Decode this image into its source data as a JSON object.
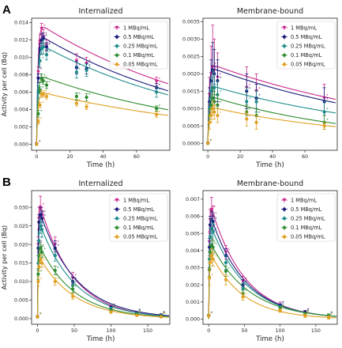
{
  "panel_labels": [
    "A",
    "B"
  ],
  "series_colors": [
    "#c8268a",
    "#1a1a7a",
    "#1e8b8b",
    "#2e8b2e",
    "#e0a020"
  ],
  "chart_data": [
    {
      "type": "scatter",
      "panel": "A",
      "title": "Internalized",
      "xlabel": "Time (h)",
      "ylabel": "Activity per cell (Bq)",
      "xlim": [
        -3,
        80
      ],
      "ylim": [
        -0.0007,
        0.0145
      ],
      "xticks": [
        0,
        20,
        40,
        60
      ],
      "yticks": [
        0,
        0.002,
        0.004,
        0.006,
        0.008,
        0.01,
        0.012,
        0.014
      ],
      "ytick_labels": [
        "0.000",
        "0.002",
        "0.004",
        "0.006",
        "0.008",
        "0.010",
        "0.012",
        "0.014"
      ],
      "legend_position": "upper right",
      "fit": {
        "model": "biexponential",
        "params": [
          [
            0.0099,
            0.0038,
            0.0124
          ],
          [
            0.0093,
            0.0038,
            0.0127
          ],
          [
            0.0084,
            0.004,
            0.0131
          ],
          [
            0.0066,
            0.0042,
            0.0087
          ],
          [
            0.005,
            0.0044,
            0.0071
          ]
        ]
      },
      "series": [
        {
          "name": "1 MBq/mL",
          "x": [
            0,
            1,
            2,
            3,
            4,
            6,
            24,
            30,
            72
          ],
          "y": [
            0.0,
            0.0083,
            0.0118,
            0.0133,
            0.0124,
            0.0114,
            0.0096,
            0.0093,
            0.0072
          ],
          "err": [
            0,
            0.0006,
            0.0008,
            0.0006,
            0.0008,
            0.0006,
            0.0008,
            0.0007,
            0.0005
          ]
        },
        {
          "name": "0.5 MBq/mL",
          "x": [
            0,
            1,
            2,
            3,
            4,
            6,
            24,
            30,
            72
          ],
          "y": [
            0.0,
            0.0076,
            0.011,
            0.012,
            0.0122,
            0.0112,
            0.0088,
            0.0087,
            0.0065
          ],
          "err": [
            0,
            0.0005,
            0.0006,
            0.0007,
            0.0006,
            0.0005,
            0.0007,
            0.0006,
            0.0005
          ]
        },
        {
          "name": "0.25 MBq/mL",
          "x": [
            0,
            1,
            2,
            3,
            4,
            6,
            24,
            30,
            72
          ],
          "y": [
            0.0,
            0.006,
            0.0096,
            0.011,
            0.0112,
            0.0103,
            0.0083,
            0.0085,
            0.006
          ],
          "err": [
            0,
            0.0007,
            0.0008,
            0.0007,
            0.0008,
            0.0006,
            0.0007,
            0.0007,
            0.0006
          ]
        },
        {
          "name": "0.1 MBq/mL",
          "x": [
            0,
            1,
            2,
            3,
            4,
            6,
            24,
            30,
            72
          ],
          "y": [
            0.0,
            0.0035,
            0.0062,
            0.0076,
            0.0073,
            0.0068,
            0.0055,
            0.0054,
            0.0041
          ],
          "err": [
            0,
            0.0004,
            0.0004,
            0.0005,
            0.0004,
            0.0004,
            0.0004,
            0.0004,
            0.0003
          ]
        },
        {
          "name": "0.05 MBq/mL",
          "x": [
            0,
            1,
            2,
            3,
            4,
            6,
            24,
            30,
            72
          ],
          "y": [
            0.0,
            0.0026,
            0.0045,
            0.0058,
            0.0057,
            0.0055,
            0.0047,
            0.0043,
            0.0034
          ],
          "err": [
            0,
            0.0003,
            0.0003,
            0.0004,
            0.0003,
            0.0003,
            0.0003,
            0.0003,
            0.0003
          ]
        }
      ]
    },
    {
      "type": "scatter",
      "panel": "A",
      "title": "Membrane-bound",
      "xlabel": "Time (h)",
      "ylabel": "",
      "xlim": [
        -3,
        80
      ],
      "ylim": [
        -0.0002,
        0.0036
      ],
      "xticks": [
        0,
        20,
        40,
        60
      ],
      "yticks": [
        0,
        0.0005,
        0.001,
        0.0015,
        0.002,
        0.0025,
        0.003,
        0.0035
      ],
      "ytick_labels": [
        "0.0000",
        "0.0005",
        "0.0010",
        "0.0015",
        "0.0020",
        "0.0025",
        "0.0030",
        "0.0035"
      ],
      "legend_position": "upper right",
      "fit": {
        "model": "biexponential",
        "params": [
          [
            0.00189,
            0.0046,
            0.015
          ],
          [
            0.00166,
            0.0048,
            0.015
          ],
          [
            0.00144,
            0.005,
            0.014
          ],
          [
            0.00112,
            0.0056,
            0.012
          ],
          [
            0.00088,
            0.006,
            0.011
          ]
        ]
      },
      "series": [
        {
          "name": "1 MBq/mL",
          "x": [
            0,
            1,
            2,
            3,
            4,
            6,
            24,
            30,
            72
          ],
          "y": [
            0.0,
            0.0014,
            0.002,
            0.0022,
            0.0021,
            0.0019,
            0.0016,
            0.0015,
            0.0013
          ],
          "err": [
            0,
            0.0005,
            0.0008,
            0.0012,
            0.0009,
            0.0007,
            0.0006,
            0.0005,
            0.0004
          ]
        },
        {
          "name": "0.5 MBq/mL",
          "x": [
            0,
            1,
            2,
            3,
            4,
            6,
            24,
            30,
            72
          ],
          "y": [
            0.0,
            0.0012,
            0.0018,
            0.0021,
            0.002,
            0.0018,
            0.0015,
            0.0013,
            0.0012
          ],
          "err": [
            0,
            0.0004,
            0.0006,
            0.0008,
            0.0007,
            0.0006,
            0.0005,
            0.0004,
            0.0004
          ]
        },
        {
          "name": "0.25 MBq/mL",
          "x": [
            0,
            1,
            2,
            3,
            4,
            6,
            24,
            30,
            72
          ],
          "y": [
            0.0,
            0.001,
            0.0015,
            0.0016,
            0.0016,
            0.0014,
            0.0012,
            0.0012,
            0.0009
          ],
          "err": [
            0,
            0.0003,
            0.0004,
            0.0005,
            0.0004,
            0.0004,
            0.0004,
            0.0003,
            0.0003
          ]
        },
        {
          "name": "0.1 MBq/mL",
          "x": [
            0,
            1,
            2,
            3,
            4,
            6,
            24,
            30,
            72
          ],
          "y": [
            0.0,
            0.0008,
            0.0011,
            0.0013,
            0.0012,
            0.0011,
            0.0009,
            0.0008,
            0.0006
          ],
          "err": [
            0,
            0.0002,
            0.0003,
            0.0003,
            0.0003,
            0.0003,
            0.0002,
            0.0002,
            0.0002
          ]
        },
        {
          "name": "0.05 MBq/mL",
          "x": [
            0,
            1,
            2,
            3,
            4,
            6,
            24,
            30,
            72
          ],
          "y": [
            0.0,
            0.0006,
            0.0008,
            0.001,
            0.0009,
            0.0008,
            0.0007,
            0.0006,
            0.0005
          ],
          "err": [
            0,
            0.0002,
            0.0002,
            0.0002,
            0.0002,
            0.0002,
            0.0002,
            0.0002,
            0.0001
          ]
        }
      ]
    },
    {
      "type": "scatter",
      "panel": "B",
      "title": "Internalized",
      "xlabel": "Time (h)",
      "ylabel": "Activity per cell (Bq)",
      "xlim": [
        -8,
        180
      ],
      "ylim": [
        -0.0015,
        0.0345
      ],
      "xticks": [
        0,
        50,
        100,
        150
      ],
      "yticks": [
        0,
        0.005,
        0.01,
        0.015,
        0.02,
        0.025,
        0.03
      ],
      "ytick_labels": [
        "0.000",
        "0.005",
        "0.010",
        "0.015",
        "0.020",
        "0.025",
        "0.030"
      ],
      "legend_position": "upper right",
      "fit": {
        "model": "peaked-decay",
        "params": [
          [
            0.0285,
            3.5
          ],
          [
            0.0275,
            3.5
          ],
          [
            0.027,
            3.5
          ],
          [
            0.021,
            3.3
          ],
          [
            0.018,
            3.3
          ]
        ]
      },
      "series": [
        {
          "name": "1 MBq/mL",
          "x": [
            0,
            1,
            2,
            4,
            6,
            24,
            48,
            100,
            135,
            168
          ],
          "y": [
            0.0005,
            0.02,
            0.027,
            0.03,
            0.028,
            0.02,
            0.011,
            0.003,
            0.0015,
            0.0008
          ],
          "err": [
            0,
            0.002,
            0.003,
            0.003,
            0.002,
            0.002,
            0.0015,
            0.0005,
            0.0004,
            0.0003
          ]
        },
        {
          "name": "0.5 MBq/mL",
          "x": [
            0,
            1,
            2,
            4,
            6,
            24,
            48,
            100,
            135,
            168
          ],
          "y": [
            0.0005,
            0.019,
            0.026,
            0.028,
            0.027,
            0.019,
            0.01,
            0.003,
            0.0016,
            0.001
          ],
          "err": [
            0,
            0.002,
            0.002,
            0.002,
            0.002,
            0.002,
            0.0012,
            0.0005,
            0.0003,
            0.0003
          ]
        },
        {
          "name": "0.25 MBq/mL",
          "x": [
            0,
            1,
            2,
            4,
            6,
            24,
            48,
            100,
            135,
            168
          ],
          "y": [
            0.0005,
            0.015,
            0.021,
            0.025,
            0.024,
            0.017,
            0.009,
            0.0027,
            0.0014,
            0.0008
          ],
          "err": [
            0,
            0.002,
            0.002,
            0.002,
            0.002,
            0.0015,
            0.001,
            0.0004,
            0.0003,
            0.0002
          ]
        },
        {
          "name": "0.1 MBq/mL",
          "x": [
            0,
            1,
            2,
            4,
            6,
            24,
            48,
            100,
            135,
            168
          ],
          "y": [
            0.0005,
            0.012,
            0.017,
            0.019,
            0.018,
            0.013,
            0.008,
            0.0022,
            0.0012,
            0.0006
          ],
          "err": [
            0,
            0.0015,
            0.0015,
            0.0015,
            0.0015,
            0.0012,
            0.001,
            0.0003,
            0.0002,
            0.0002
          ]
        },
        {
          "name": "0.05 MBq/mL",
          "x": [
            0,
            1,
            2,
            4,
            6,
            24,
            48,
            100,
            135,
            168
          ],
          "y": [
            0.0005,
            0.01,
            0.014,
            0.016,
            0.015,
            0.01,
            0.006,
            0.0018,
            0.0009,
            0.0005
          ],
          "err": [
            0,
            0.0012,
            0.0012,
            0.0012,
            0.0012,
            0.001,
            0.0008,
            0.0003,
            0.0002,
            0.0002
          ]
        }
      ]
    },
    {
      "type": "scatter",
      "panel": "B",
      "title": "Membrane-bound",
      "xlabel": "Time (h)",
      "ylabel": "",
      "xlim": [
        -8,
        180
      ],
      "ylim": [
        -0.0003,
        0.0075
      ],
      "xticks": [
        0,
        50,
        100,
        150
      ],
      "yticks": [
        0,
        0.001,
        0.002,
        0.003,
        0.004,
        0.005,
        0.006,
        0.007
      ],
      "ytick_labels": [
        "0.000",
        "0.001",
        "0.002",
        "0.003",
        "0.004",
        "0.005",
        "0.006",
        "0.007"
      ],
      "legend_position": "upper right",
      "fit": {
        "model": "peaked-decay",
        "params": [
          [
            0.0058,
            3.4
          ],
          [
            0.0056,
            3.4
          ],
          [
            0.0053,
            3.4
          ],
          [
            0.0044,
            3.3
          ],
          [
            0.0038,
            3.3
          ]
        ]
      },
      "series": [
        {
          "name": "1 MBq/mL",
          "x": [
            0,
            1,
            2,
            4,
            6,
            24,
            48,
            100,
            135,
            168
          ],
          "y": [
            0.0002,
            0.0045,
            0.0058,
            0.0064,
            0.006,
            0.0039,
            0.0022,
            0.0008,
            0.0004,
            0.0002
          ],
          "err": [
            0,
            0.0006,
            0.0006,
            0.0007,
            0.0006,
            0.0004,
            0.0003,
            0.0002,
            0.0001,
            0.0001
          ]
        },
        {
          "name": "0.5 MBq/mL",
          "x": [
            0,
            1,
            2,
            4,
            6,
            24,
            48,
            100,
            135,
            168
          ],
          "y": [
            0.0002,
            0.0042,
            0.0055,
            0.0058,
            0.0057,
            0.0037,
            0.002,
            0.0008,
            0.0004,
            0.0002
          ],
          "err": [
            0,
            0.0005,
            0.0005,
            0.0005,
            0.0005,
            0.0004,
            0.0003,
            0.0001,
            0.0001,
            0.0001
          ]
        },
        {
          "name": "0.25 MBq/mL",
          "x": [
            0,
            1,
            2,
            4,
            6,
            24,
            48,
            100,
            135,
            168
          ],
          "y": [
            0.0002,
            0.0035,
            0.0048,
            0.0053,
            0.0051,
            0.0033,
            0.0018,
            0.0007,
            0.0003,
            0.0002
          ],
          "err": [
            0,
            0.0005,
            0.0005,
            0.0005,
            0.0005,
            0.0004,
            0.0003,
            0.0001,
            0.0001,
            0.0001
          ]
        },
        {
          "name": "0.1 MBq/mL",
          "x": [
            0,
            1,
            2,
            4,
            6,
            24,
            48,
            100,
            135,
            168
          ],
          "y": [
            0.0002,
            0.0029,
            0.0039,
            0.0043,
            0.0042,
            0.0028,
            0.0015,
            0.0006,
            0.0003,
            0.0002
          ],
          "err": [
            0,
            0.0004,
            0.0004,
            0.0004,
            0.0004,
            0.0003,
            0.0002,
            0.0001,
            0.0001,
            0.0001
          ]
        },
        {
          "name": "0.05 MBq/mL",
          "x": [
            0,
            1,
            2,
            4,
            6,
            24,
            48,
            100,
            135,
            168
          ],
          "y": [
            0.0002,
            0.0024,
            0.0033,
            0.0037,
            0.0035,
            0.0023,
            0.0013,
            0.0005,
            0.0002,
            0.0001
          ],
          "err": [
            0,
            0.0004,
            0.0004,
            0.0004,
            0.0004,
            0.0003,
            0.0002,
            0.0001,
            0.0001,
            0.0001
          ]
        }
      ]
    }
  ]
}
